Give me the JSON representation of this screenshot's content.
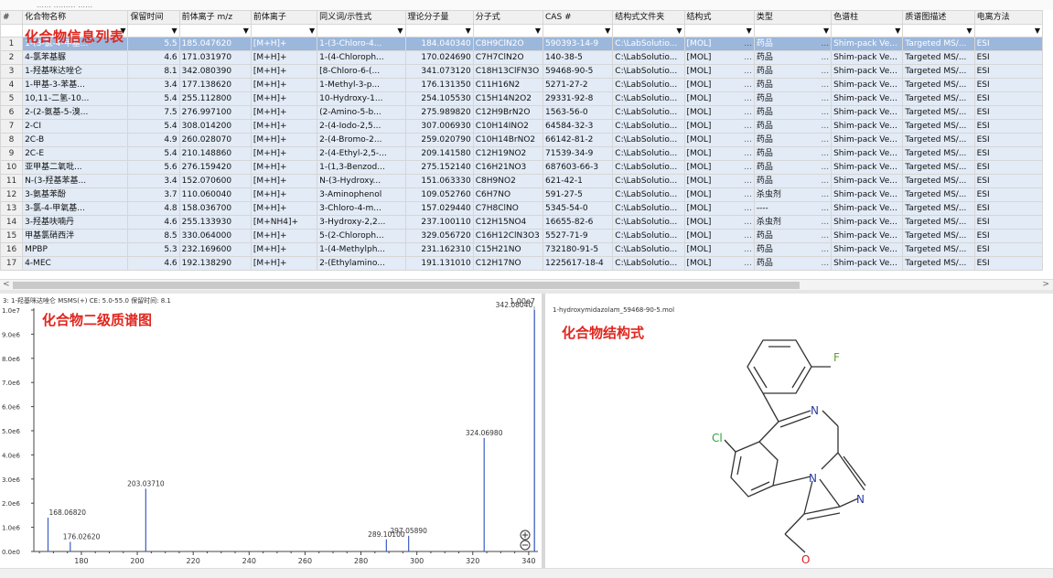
{
  "topbar": {
    "text": "…… ……… ……"
  },
  "overlays": {
    "table_label": "化合物信息列表",
    "spectrum_label": "化合物二级质谱图",
    "structure_label": "化合物结构式"
  },
  "columns": [
    "#",
    "化合物名称",
    "保留时间",
    "前体离子 m/z",
    "前体离子",
    "同义词/示性式",
    "理论分子量",
    "分子式",
    "CAS #",
    "结构式文件夹",
    "结构式",
    "类型",
    "色谱柱",
    "质谱图描述",
    "电离方法"
  ],
  "rows": [
    {
      "n": "1",
      "name": "1-(3-氯-4-甲基...",
      "rt": "5.5",
      "mz": "185.047620",
      "ion": "[M+H]+",
      "syn": "1-(3-Chloro-4...",
      "mw": "184.040340",
      "formula": "C8H9ClN2O",
      "cas": "590393-14-9",
      "folder": "C:\\LabSolutio...",
      "struct": "[MOL]",
      "type": "药品",
      "column": "Shim-pack Ve...",
      "desc": "Targeted MS/...",
      "ionmethod": "ESI",
      "selected": true
    },
    {
      "n": "2",
      "name": "4-氯苯基脲",
      "rt": "4.6",
      "mz": "171.031970",
      "ion": "[M+H]+",
      "syn": "1-(4-Chloroph...",
      "mw": "170.024690",
      "formula": "C7H7ClN2O",
      "cas": "140-38-5",
      "folder": "C:\\LabSolutio...",
      "struct": "[MOL]",
      "type": "药品",
      "column": "Shim-pack Ve...",
      "desc": "Targeted MS/...",
      "ionmethod": "ESI"
    },
    {
      "n": "3",
      "name": "1-羟基咪达唑仑",
      "rt": "8.1",
      "mz": "342.080390",
      "ion": "[M+H]+",
      "syn": "[8-Chloro-6-(...",
      "mw": "341.073120",
      "formula": "C18H13ClFN3O",
      "cas": "59468-90-5",
      "folder": "C:\\LabSolutio...",
      "struct": "[MOL]",
      "type": "药品",
      "column": "Shim-pack Ve...",
      "desc": "Targeted MS/...",
      "ionmethod": "ESI"
    },
    {
      "n": "4",
      "name": "1-甲基-3-苯基...",
      "rt": "3.4",
      "mz": "177.138620",
      "ion": "[M+H]+",
      "syn": "1-Methyl-3-p...",
      "mw": "176.131350",
      "formula": "C11H16N2",
      "cas": "5271-27-2",
      "folder": "C:\\LabSolutio...",
      "struct": "[MOL]",
      "type": "药品",
      "column": "Shim-pack Ve...",
      "desc": "Targeted MS/...",
      "ionmethod": "ESI"
    },
    {
      "n": "5",
      "name": "10,11-二氢-10...",
      "rt": "5.4",
      "mz": "255.112800",
      "ion": "[M+H]+",
      "syn": "10-Hydroxy-1...",
      "mw": "254.105530",
      "formula": "C15H14N2O2",
      "cas": "29331-92-8",
      "folder": "C:\\LabSolutio...",
      "struct": "[MOL]",
      "type": "药品",
      "column": "Shim-pack Ve...",
      "desc": "Targeted MS/...",
      "ionmethod": "ESI"
    },
    {
      "n": "6",
      "name": "2-(2-氨基-5-溴...",
      "rt": "7.5",
      "mz": "276.997100",
      "ion": "[M+H]+",
      "syn": "(2-Amino-5-b...",
      "mw": "275.989820",
      "formula": "C12H9BrN2O",
      "cas": "1563-56-0",
      "folder": "C:\\LabSolutio...",
      "struct": "[MOL]",
      "type": "药品",
      "column": "Shim-pack Ve...",
      "desc": "Targeted MS/...",
      "ionmethod": "ESI"
    },
    {
      "n": "7",
      "name": "2-CI",
      "rt": "5.4",
      "mz": "308.014200",
      "ion": "[M+H]+",
      "syn": "2-(4-Iodo-2,5...",
      "mw": "307.006930",
      "formula": "C10H14INO2",
      "cas": "64584-32-3",
      "folder": "C:\\LabSolutio...",
      "struct": "[MOL]",
      "type": "药品",
      "column": "Shim-pack Ve...",
      "desc": "Targeted MS/...",
      "ionmethod": "ESI"
    },
    {
      "n": "8",
      "name": "2C-B",
      "rt": "4.9",
      "mz": "260.028070",
      "ion": "[M+H]+",
      "syn": "2-(4-Bromo-2...",
      "mw": "259.020790",
      "formula": "C10H14BrNO2",
      "cas": "66142-81-2",
      "folder": "C:\\LabSolutio...",
      "struct": "[MOL]",
      "type": "药品",
      "column": "Shim-pack Ve...",
      "desc": "Targeted MS/...",
      "ionmethod": "ESI"
    },
    {
      "n": "9",
      "name": "2C-E",
      "rt": "5.4",
      "mz": "210.148860",
      "ion": "[M+H]+",
      "syn": "2-(4-Ethyl-2,5-...",
      "mw": "209.141580",
      "formula": "C12H19NO2",
      "cas": "71539-34-9",
      "folder": "C:\\LabSolutio...",
      "struct": "[MOL]",
      "type": "药品",
      "column": "Shim-pack Ve...",
      "desc": "Targeted MS/...",
      "ionmethod": "ESI"
    },
    {
      "n": "10",
      "name": "亚甲基二氧吡...",
      "rt": "5.6",
      "mz": "276.159420",
      "ion": "[M+H]+",
      "syn": "1-(1,3-Benzod...",
      "mw": "275.152140",
      "formula": "C16H21NO3",
      "cas": "687603-66-3",
      "folder": "C:\\LabSolutio...",
      "struct": "[MOL]",
      "type": "药品",
      "column": "Shim-pack Ve...",
      "desc": "Targeted MS/...",
      "ionmethod": "ESI"
    },
    {
      "n": "11",
      "name": "N-(3-羟基苯基...",
      "rt": "3.4",
      "mz": "152.070600",
      "ion": "[M+H]+",
      "syn": "N-(3-Hydroxy...",
      "mw": "151.063330",
      "formula": "C8H9NO2",
      "cas": "621-42-1",
      "folder": "C:\\LabSolutio...",
      "struct": "[MOL]",
      "type": "药品",
      "column": "Shim-pack Ve...",
      "desc": "Targeted MS/...",
      "ionmethod": "ESI"
    },
    {
      "n": "12",
      "name": "3-氨基苯酚",
      "rt": "3.7",
      "mz": "110.060040",
      "ion": "[M+H]+",
      "syn": "3-Aminophenol",
      "mw": "109.052760",
      "formula": "C6H7NO",
      "cas": "591-27-5",
      "folder": "C:\\LabSolutio...",
      "struct": "[MOL]",
      "type": "杀虫剂",
      "column": "Shim-pack Ve...",
      "desc": "Targeted MS/...",
      "ionmethod": "ESI"
    },
    {
      "n": "13",
      "name": "3-氯-4-甲氧基...",
      "rt": "4.8",
      "mz": "158.036700",
      "ion": "[M+H]+",
      "syn": "3-Chloro-4-m...",
      "mw": "157.029440",
      "formula": "C7H8ClNO",
      "cas": "5345-54-0",
      "folder": "C:\\LabSolutio...",
      "struct": "[MOL]",
      "type": "----",
      "column": "Shim-pack Ve...",
      "desc": "Targeted MS/...",
      "ionmethod": "ESI"
    },
    {
      "n": "14",
      "name": "3-羟基呋喃丹",
      "rt": "4.6",
      "mz": "255.133930",
      "ion": "[M+NH4]+",
      "syn": "3-Hydroxy-2,2...",
      "mw": "237.100110",
      "formula": "C12H15NO4",
      "cas": "16655-82-6",
      "folder": "C:\\LabSolutio...",
      "struct": "[MOL]",
      "type": "杀虫剂",
      "column": "Shim-pack Ve...",
      "desc": "Targeted MS/...",
      "ionmethod": "ESI"
    },
    {
      "n": "15",
      "name": "甲基氯硝西泮",
      "rt": "8.5",
      "mz": "330.064000",
      "ion": "[M+H]+",
      "syn": "5-(2-Chloroph...",
      "mw": "329.056720",
      "formula": "C16H12ClN3O3",
      "cas": "5527-71-9",
      "folder": "C:\\LabSolutio...",
      "struct": "[MOL]",
      "type": "药品",
      "column": "Shim-pack Ve...",
      "desc": "Targeted MS/...",
      "ionmethod": "ESI"
    },
    {
      "n": "16",
      "name": "MPBP",
      "rt": "5.3",
      "mz": "232.169600",
      "ion": "[M+H]+",
      "syn": "1-(4-Methylph...",
      "mw": "231.162310",
      "formula": "C15H21NO",
      "cas": "732180-91-5",
      "folder": "C:\\LabSolutio...",
      "struct": "[MOL]",
      "type": "药品",
      "column": "Shim-pack Ve...",
      "desc": "Targeted MS/...",
      "ionmethod": "ESI"
    },
    {
      "n": "17",
      "name": "4-MEC",
      "rt": "4.6",
      "mz": "192.138290",
      "ion": "[M+H]+",
      "syn": "2-(Ethylamino...",
      "mw": "191.131010",
      "formula": "C12H17NO",
      "cas": "1225617-18-4",
      "folder": "C:\\LabSolutio...",
      "struct": "[MOL]",
      "type": "药品",
      "column": "Shim-pack Ve...",
      "desc": "Targeted MS/...",
      "ionmethod": "ESI"
    }
  ],
  "spectrum": {
    "header": "3: 1-羟基咪达唑仑 MSMS(+) CE: 5.0-55.0 保留时间: 8.1",
    "scale": "1.00e7",
    "icons": {
      "zoom_in": "plus-circle-icon",
      "zoom_out": "minus-circle-icon"
    }
  },
  "chart_data": {
    "type": "bar",
    "title": "",
    "xlabel": "",
    "ylabel": "",
    "xlim": [
      163,
      342
    ],
    "ylim": [
      0,
      10000000
    ],
    "x_ticks": [
      "180",
      "200",
      "220",
      "240",
      "260",
      "280",
      "300",
      "320",
      "340"
    ],
    "y_ticks": [
      "0.0e0",
      "1.0e6",
      "2.0e6",
      "3.0e6",
      "4.0e6",
      "5.0e6",
      "6.0e6",
      "7.0e6",
      "8.0e6",
      "9.0e6",
      "1.0e7"
    ],
    "peaks": [
      {
        "mz": 168.0682,
        "intensity": 1400000,
        "label": "168.06820"
      },
      {
        "mz": 176.0262,
        "intensity": 400000,
        "label": "176.02620"
      },
      {
        "mz": 203.0371,
        "intensity": 2600000,
        "label": "203.03710"
      },
      {
        "mz": 289.101,
        "intensity": 500000,
        "label": "289.10100"
      },
      {
        "mz": 297.0589,
        "intensity": 650000,
        "label": "297.05890"
      },
      {
        "mz": 324.0698,
        "intensity": 4700000,
        "label": "324.06980"
      },
      {
        "mz": 342.0804,
        "intensity": 10000000,
        "label": "342.08040"
      }
    ]
  },
  "structure": {
    "filename": "1-hydroxymidazolam_59468-90-5.mol",
    "atoms": {
      "F": "F",
      "Cl": "Cl",
      "N1": "N",
      "N2": "N",
      "N3": "N",
      "O": "O"
    }
  },
  "colors": {
    "selected_row": "#9bb7dc",
    "row_bg": "#e2ebf6",
    "label_red": "#e0261e",
    "spectrum_bar": "#3a5ec2",
    "cl_color": "#2aa33a",
    "f_color": "#5aa030",
    "n_color": "#2a3aa8",
    "o_color": "#d82020"
  }
}
